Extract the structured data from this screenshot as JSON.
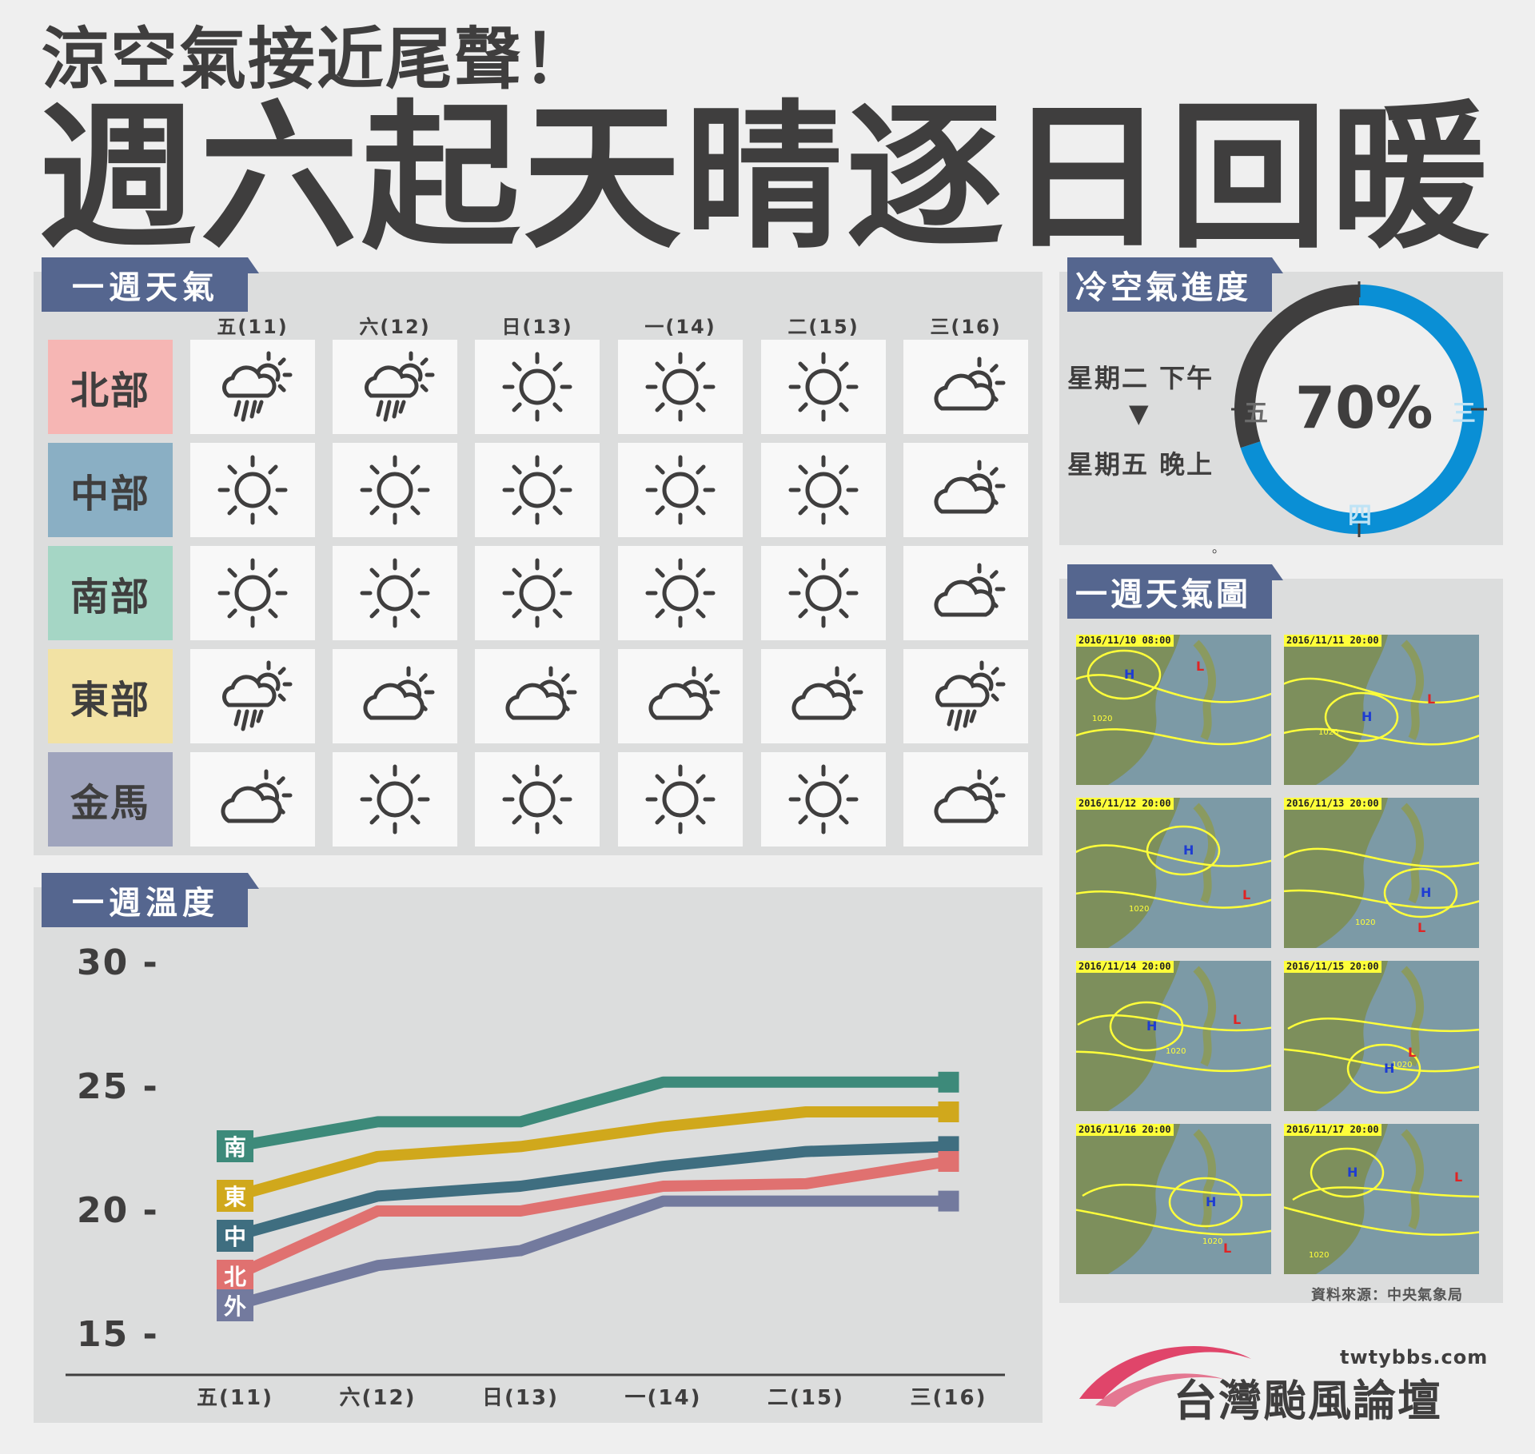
{
  "headline": {
    "line1": "涼空氣接近尾聲！",
    "line2": "週六起天晴逐日回暖"
  },
  "weekly_weather": {
    "tab": "一週天氣",
    "days": [
      "五(11)",
      "六(12)",
      "日(13)",
      "一(14)",
      "二(15)",
      "三(16)"
    ],
    "regions": [
      {
        "name": "北部",
        "color": "#f6b6b4",
        "icons": [
          "rain-cloud-sun-icon",
          "rain-cloud-sun-icon",
          "sun-icon",
          "sun-icon",
          "sun-icon",
          "cloud-sun-icon"
        ]
      },
      {
        "name": "中部",
        "color": "#8aafc4",
        "icons": [
          "sun-icon",
          "sun-icon",
          "sun-icon",
          "sun-icon",
          "sun-icon",
          "cloud-sun-icon"
        ]
      },
      {
        "name": "南部",
        "color": "#a5d6c5",
        "icons": [
          "sun-icon",
          "sun-icon",
          "sun-icon",
          "sun-icon",
          "sun-icon",
          "cloud-sun-icon"
        ]
      },
      {
        "name": "東部",
        "color": "#f2e2a4",
        "icons": [
          "rain-cloud-sun-icon",
          "cloud-sun-icon",
          "cloud-sun-icon",
          "cloud-sun-icon",
          "cloud-sun-icon",
          "rain-cloud-sun-icon"
        ]
      },
      {
        "name": "金馬",
        "color": "#9fa4bd",
        "icons": [
          "cloud-sun-icon",
          "sun-icon",
          "sun-icon",
          "sun-icon",
          "sun-icon",
          "cloud-sun-icon"
        ]
      }
    ]
  },
  "cold_air": {
    "tab": "冷空氣進度",
    "from": "星期二 下午",
    "arrow": "▼",
    "to": "星期五 晚上",
    "percent": "70%",
    "percent_value": 0.7,
    "labels": {
      "left": "五",
      "right": "三",
      "bottom": "四"
    },
    "colors": {
      "done": "#0a8fd5",
      "remaining": "#3f3e3e"
    },
    "stray_mark": "。"
  },
  "weather_maps": {
    "tab": "一週天氣圖",
    "maps": [
      "2016/11/10 08:00",
      "2016/11/11 20:00",
      "2016/11/12 20:00",
      "2016/11/13 20:00",
      "2016/11/14 20:00",
      "2016/11/15 20:00",
      "2016/11/16 20:00",
      "2016/11/17 20:00"
    ],
    "source": "資料來源：中央氣象局",
    "map_labels": {
      "high": "H",
      "low": "L",
      "isobar": "1020"
    }
  },
  "temperature": {
    "tab": "一週溫度",
    "chart_data": {
      "type": "line",
      "categories": [
        "五(11)",
        "六(12)",
        "日(13)",
        "一(14)",
        "二(15)",
        "三(16)"
      ],
      "yticks": [
        "30 -",
        "25 -",
        "20 -",
        "15 -"
      ],
      "ylim": [
        15,
        30
      ],
      "series": [
        {
          "name": "南",
          "color": "#3d8a7a",
          "values": [
            22.6,
            23.6,
            23.6,
            25.2,
            25.2,
            25.2
          ]
        },
        {
          "name": "東",
          "color": "#d0a81c",
          "values": [
            20.6,
            22.2,
            22.6,
            23.4,
            24.0,
            24.0
          ]
        },
        {
          "name": "中",
          "color": "#3f6e80",
          "values": [
            19.0,
            20.6,
            21.0,
            21.8,
            22.4,
            22.6
          ]
        },
        {
          "name": "北",
          "color": "#e07170",
          "values": [
            17.4,
            20.0,
            20.0,
            21.0,
            21.1,
            22.0
          ]
        },
        {
          "name": "外",
          "color": "#737a9e",
          "values": [
            16.2,
            17.8,
            18.4,
            20.4,
            20.4,
            20.4
          ]
        }
      ]
    }
  },
  "branding": {
    "domain": "twtybbs.com",
    "name": "台灣颱風論壇",
    "swoosh_color": "#e0456a"
  }
}
